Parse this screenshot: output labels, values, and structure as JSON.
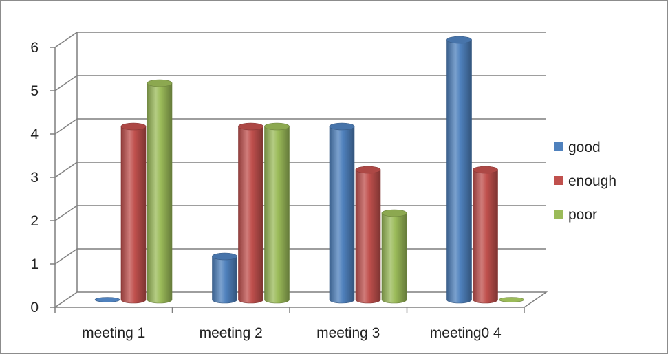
{
  "chart_data": {
    "type": "bar",
    "style": "3d-cylinder",
    "categories": [
      "meeting 1",
      "meeting 2",
      "meeting 3",
      "meeting0 4"
    ],
    "series": [
      {
        "name": "good",
        "values": [
          0,
          1,
          4,
          6
        ],
        "color": "#4f81bd"
      },
      {
        "name": "enough",
        "values": [
          4,
          4,
          3,
          3
        ],
        "color": "#c0504d"
      },
      {
        "name": "poor",
        "values": [
          5,
          4,
          2,
          0
        ],
        "color": "#9bbb59"
      }
    ],
    "yticks": [
      "0",
      "1",
      "2",
      "3",
      "4",
      "5",
      "6"
    ],
    "ylim": [
      0,
      6
    ],
    "grid": true,
    "legend_position": "right"
  }
}
